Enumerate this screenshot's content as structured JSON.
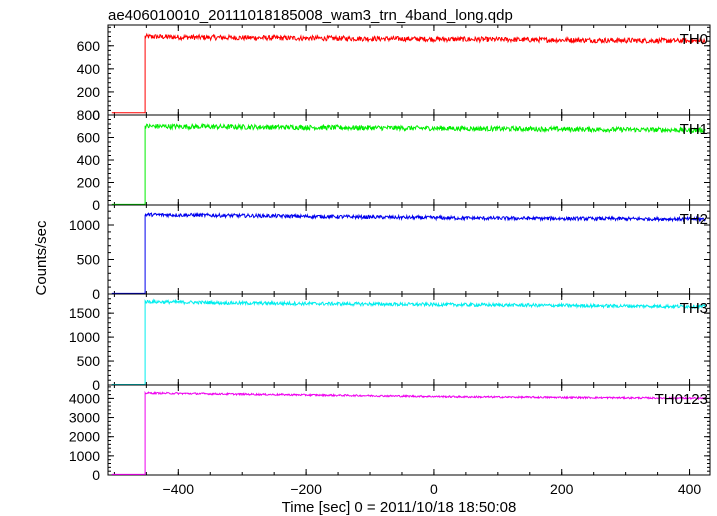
{
  "chart_data": {
    "type": "line",
    "title": "ae406010010_20111018185008_wam3_trn_4band_long.qdp",
    "xlabel": "Time [sec] 0 = 2011/10/18 18:50:08",
    "ylabel": "Counts/sec",
    "xlim": [
      -510,
      432
    ],
    "x_ticks": [
      -400,
      -200,
      0,
      200,
      400
    ],
    "x_tick_labels": [
      "−400",
      "−200",
      "0",
      "200",
      "400"
    ],
    "grid": false,
    "step_time": -452,
    "panels": [
      {
        "name": "TH0",
        "color": "#ff0000",
        "ylim": [
          0,
          780
        ],
        "y_ticks": [
          0,
          200,
          400,
          600
        ],
        "y_tick_labels": [
          "0",
          "200",
          "400",
          "600"
        ],
        "pre_level": 20,
        "x": [
          -452,
          -400,
          -350,
          -300,
          -250,
          -200,
          -150,
          -100,
          -50,
          0,
          50,
          100,
          150,
          200,
          250,
          300,
          350,
          400,
          425
        ],
        "values": [
          680,
          675,
          672,
          670,
          668,
          666,
          664,
          662,
          660,
          658,
          656,
          654,
          652,
          650,
          648,
          646,
          644,
          642,
          640
        ],
        "noise": 22
      },
      {
        "name": "TH1",
        "color": "#00ee00",
        "ylim": [
          0,
          800
        ],
        "y_ticks": [
          0,
          200,
          400,
          600,
          800
        ],
        "y_tick_labels": [
          "0",
          "200",
          "400",
          "600",
          "800"
        ],
        "pre_level": 5,
        "x": [
          -452,
          -400,
          -350,
          -300,
          -250,
          -200,
          -150,
          -100,
          -50,
          0,
          50,
          100,
          150,
          200,
          250,
          300,
          350,
          400,
          425
        ],
        "values": [
          700,
          698,
          696,
          694,
          692,
          690,
          688,
          686,
          684,
          682,
          680,
          678,
          676,
          674,
          672,
          670,
          668,
          666,
          665
        ],
        "noise": 22
      },
      {
        "name": "TH2",
        "color": "#0000ee",
        "ylim": [
          0,
          1290
        ],
        "y_ticks": [
          0,
          500,
          1000
        ],
        "y_tick_labels": [
          "0",
          "500",
          "1000"
        ],
        "pre_level": 8,
        "x": [
          -452,
          -400,
          -350,
          -300,
          -250,
          -200,
          -150,
          -100,
          -50,
          0,
          50,
          100,
          150,
          200,
          250,
          300,
          350,
          400,
          425
        ],
        "values": [
          1150,
          1145,
          1140,
          1135,
          1130,
          1125,
          1120,
          1115,
          1110,
          1105,
          1100,
          1098,
          1096,
          1094,
          1092,
          1090,
          1088,
          1086,
          1085
        ],
        "noise": 26
      },
      {
        "name": "TH3",
        "color": "#00eeee",
        "ylim": [
          0,
          1900
        ],
        "y_ticks": [
          0,
          500,
          1000,
          1500
        ],
        "y_tick_labels": [
          "0",
          "500",
          "1000",
          "1500"
        ],
        "pre_level": 10,
        "x": [
          -452,
          -400,
          -350,
          -300,
          -250,
          -200,
          -150,
          -100,
          -50,
          0,
          50,
          100,
          150,
          200,
          250,
          300,
          350,
          400,
          425
        ],
        "values": [
          1740,
          1730,
          1720,
          1710,
          1705,
          1700,
          1695,
          1690,
          1685,
          1680,
          1675,
          1670,
          1665,
          1660,
          1655,
          1650,
          1645,
          1640,
          1638
        ],
        "noise": 35
      },
      {
        "name": "TH0123",
        "color": "#ee00ee",
        "ylim": [
          0,
          4700
        ],
        "y_ticks": [
          0,
          1000,
          2000,
          3000,
          4000
        ],
        "y_tick_labels": [
          "0",
          "1000",
          "2000",
          "3000",
          "4000"
        ],
        "pre_level": 30,
        "x": [
          -452,
          -400,
          -350,
          -300,
          -250,
          -200,
          -150,
          -100,
          -50,
          0,
          50,
          100,
          150,
          200,
          250,
          300,
          350,
          400,
          425
        ],
        "values": [
          4280,
          4260,
          4240,
          4220,
          4200,
          4180,
          4160,
          4140,
          4120,
          4100,
          4080,
          4070,
          4060,
          4050,
          4040,
          4030,
          4020,
          4010,
          4000
        ],
        "noise": 45
      }
    ]
  }
}
